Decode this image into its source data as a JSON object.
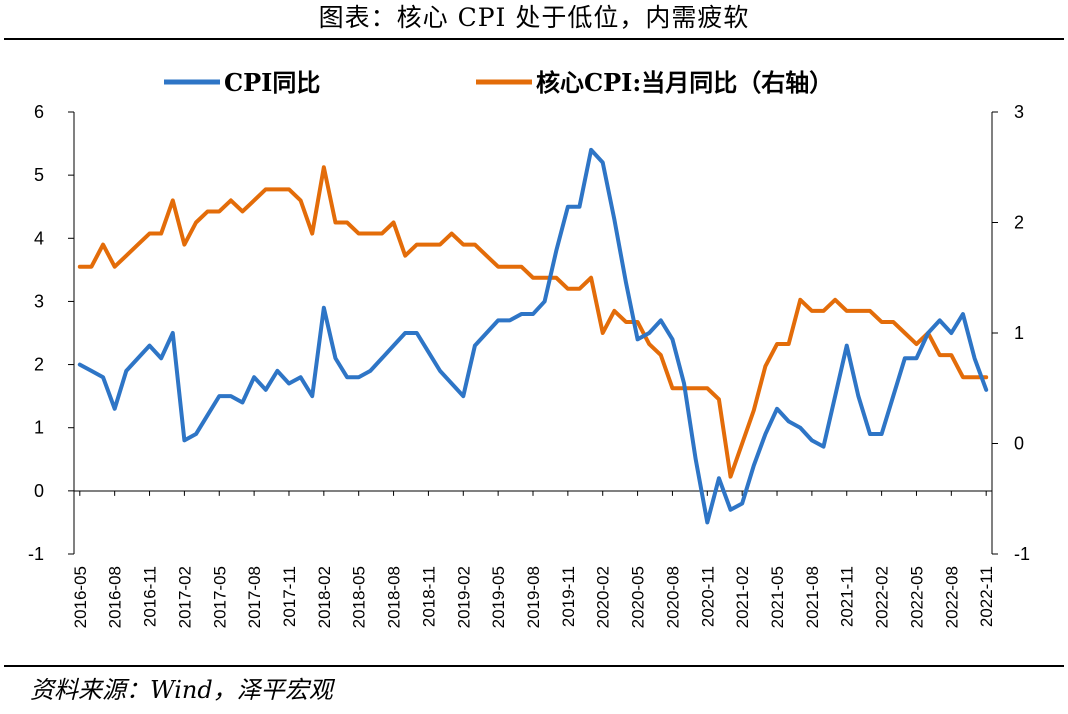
{
  "title": "图表：核心 CPI 处于低位，内需疲软",
  "source": "资料来源：Wind，泽平宏观",
  "chart_data": {
    "type": "line",
    "title": "图表：核心 CPI 处于低位，内需疲软",
    "legend_position": "top",
    "grid": false,
    "y_left": {
      "range": [
        -1,
        6
      ],
      "ticks": [
        "-1",
        "0",
        "1",
        "2",
        "3",
        "4",
        "5",
        "6"
      ]
    },
    "y_right": {
      "range": [
        -1,
        3
      ],
      "ticks": [
        "-1",
        "0",
        "1",
        "2",
        "3"
      ]
    },
    "x_tick_labels": [
      "2016-05",
      "2016-08",
      "2016-11",
      "2017-02",
      "2017-05",
      "2017-08",
      "2017-11",
      "2018-02",
      "2018-05",
      "2018-08",
      "2018-11",
      "2019-02",
      "2019-05",
      "2019-08",
      "2019-11",
      "2020-02",
      "2020-05",
      "2020-08",
      "2020-11",
      "2021-02",
      "2021-05",
      "2021-08",
      "2021-11",
      "2022-02",
      "2022-05",
      "2022-08",
      "2022-11"
    ],
    "x": [
      "2016-05",
      "2016-06",
      "2016-07",
      "2016-08",
      "2016-09",
      "2016-10",
      "2016-11",
      "2016-12",
      "2017-01",
      "2017-02",
      "2017-03",
      "2017-04",
      "2017-05",
      "2017-06",
      "2017-07",
      "2017-08",
      "2017-09",
      "2017-10",
      "2017-11",
      "2017-12",
      "2018-01",
      "2018-02",
      "2018-03",
      "2018-04",
      "2018-05",
      "2018-06",
      "2018-07",
      "2018-08",
      "2018-09",
      "2018-10",
      "2018-11",
      "2018-12",
      "2019-01",
      "2019-02",
      "2019-03",
      "2019-04",
      "2019-05",
      "2019-06",
      "2019-07",
      "2019-08",
      "2019-09",
      "2019-10",
      "2019-11",
      "2019-12",
      "2020-01",
      "2020-02",
      "2020-03",
      "2020-04",
      "2020-05",
      "2020-06",
      "2020-07",
      "2020-08",
      "2020-09",
      "2020-10",
      "2020-11",
      "2020-12",
      "2021-01",
      "2021-02",
      "2021-03",
      "2021-04",
      "2021-05",
      "2021-06",
      "2021-07",
      "2021-08",
      "2021-09",
      "2021-10",
      "2021-11",
      "2021-12",
      "2022-01",
      "2022-02",
      "2022-03",
      "2022-04",
      "2022-05",
      "2022-06",
      "2022-07",
      "2022-08",
      "2022-09",
      "2022-10",
      "2022-11"
    ],
    "series": [
      {
        "name": "CPI同比",
        "axis": "left",
        "color": "#2E75C6",
        "values": [
          2.0,
          1.9,
          1.8,
          1.3,
          1.9,
          2.1,
          2.3,
          2.1,
          2.5,
          0.8,
          0.9,
          1.2,
          1.5,
          1.5,
          1.4,
          1.8,
          1.6,
          1.9,
          1.7,
          1.8,
          1.5,
          2.9,
          2.1,
          1.8,
          1.8,
          1.9,
          2.1,
          2.3,
          2.5,
          2.5,
          2.2,
          1.9,
          1.7,
          1.5,
          2.3,
          2.5,
          2.7,
          2.7,
          2.8,
          2.8,
          3.0,
          3.8,
          4.5,
          4.5,
          5.4,
          5.2,
          4.3,
          3.3,
          2.4,
          2.5,
          2.7,
          2.4,
          1.7,
          0.5,
          -0.5,
          0.2,
          -0.3,
          -0.2,
          0.4,
          0.9,
          1.3,
          1.1,
          1.0,
          0.8,
          0.7,
          1.5,
          2.3,
          1.5,
          0.9,
          0.9,
          1.5,
          2.1,
          2.1,
          2.5,
          2.7,
          2.5,
          2.8,
          2.1,
          1.6
        ]
      },
      {
        "name": "核心CPI:当月同比（右轴）",
        "axis": "right",
        "color": "#E36C09",
        "values": [
          1.6,
          1.6,
          1.8,
          1.6,
          1.7,
          1.8,
          1.9,
          1.9,
          2.2,
          1.8,
          2.0,
          2.1,
          2.1,
          2.2,
          2.1,
          2.2,
          2.3,
          2.3,
          2.3,
          2.2,
          1.9,
          2.5,
          2.0,
          2.0,
          1.9,
          1.9,
          1.9,
          2.0,
          1.7,
          1.8,
          1.8,
          1.8,
          1.9,
          1.8,
          1.8,
          1.7,
          1.6,
          1.6,
          1.6,
          1.5,
          1.5,
          1.5,
          1.4,
          1.4,
          1.5,
          1.0,
          1.2,
          1.1,
          1.1,
          0.9,
          0.8,
          0.5,
          0.5,
          0.5,
          0.5,
          0.4,
          -0.3,
          0.0,
          0.3,
          0.7,
          0.9,
          0.9,
          1.3,
          1.2,
          1.2,
          1.3,
          1.2,
          1.2,
          1.2,
          1.1,
          1.1,
          1.0,
          0.9,
          1.0,
          0.8,
          0.8,
          0.6,
          0.6,
          0.6
        ]
      }
    ]
  }
}
